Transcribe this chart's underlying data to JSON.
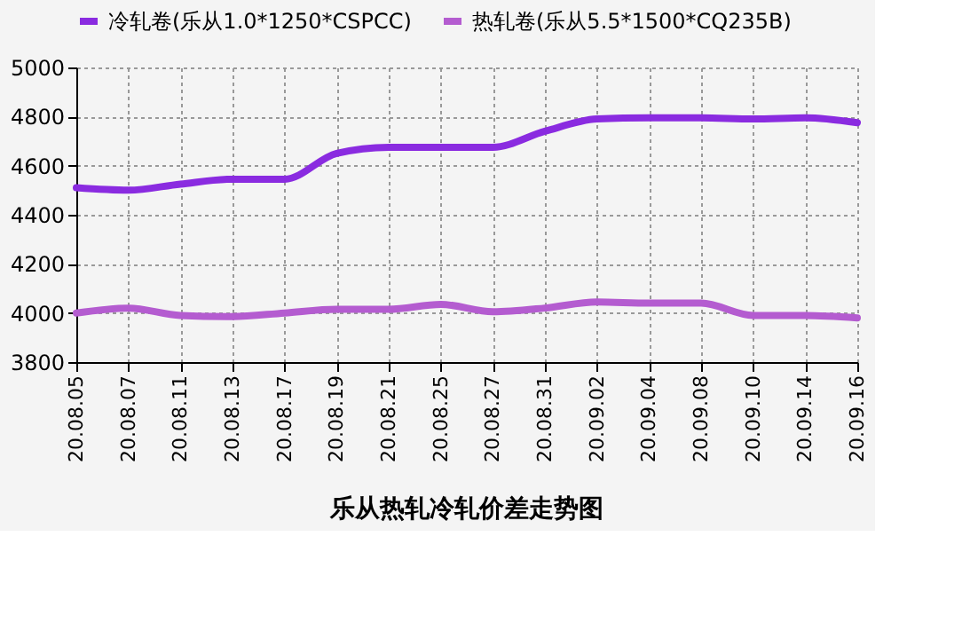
{
  "chart_data": {
    "type": "line",
    "title": "乐从热轧冷轧价差走势图",
    "categories": [
      "20.08.05",
      "20.08.07",
      "20.08.11",
      "20.08.13",
      "20.08.17",
      "20.08.19",
      "20.08.21",
      "20.08.25",
      "20.08.27",
      "20.08.31",
      "20.09.02",
      "20.09.04",
      "20.09.08",
      "20.09.10",
      "20.09.14",
      "20.09.16"
    ],
    "series": [
      {
        "name": "冷轧卷(乐从1.0*1250*CSPCC)",
        "color": "#8a2be0",
        "values": [
          4510,
          4500,
          4525,
          4545,
          4545,
          4650,
          4675,
          4675,
          4675,
          4740,
          4790,
          4795,
          4795,
          4790,
          4795,
          4775
        ]
      },
      {
        "name": "热轧卷(乐从5.5*1500*CQ235B)",
        "color": "#b45cd0",
        "values": [
          4000,
          4020,
          3990,
          3985,
          4000,
          4015,
          4015,
          4035,
          4005,
          4020,
          4045,
          4040,
          4040,
          3990,
          3990,
          3980
        ]
      }
    ],
    "ylim": [
      3800,
      5000
    ],
    "yticks": [
      3800,
      4000,
      4200,
      4400,
      4600,
      4800,
      5000
    ],
    "grid": true,
    "legend": "top",
    "marker": "none",
    "line_style": "solid"
  }
}
